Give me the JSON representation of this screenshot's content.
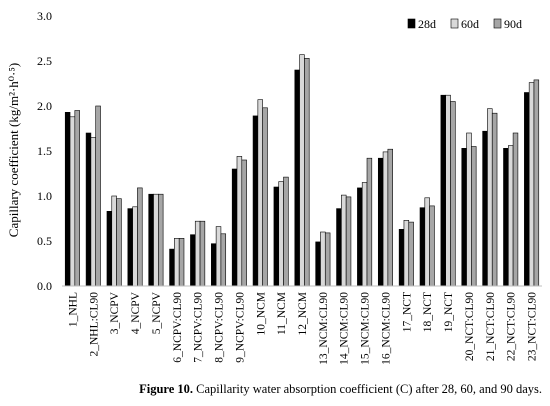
{
  "chart_data": {
    "type": "bar",
    "ylabel": "Capillary coefficient (kg/m²·h⁰·⁵)",
    "ylim": [
      0,
      3.0
    ],
    "yticks": [
      "0.0",
      "0.5",
      "1.0",
      "1.5",
      "2.0",
      "2.5",
      "3.0"
    ],
    "legend_position": "top-right",
    "grid": false,
    "categories": [
      "1_NHL",
      "2_NHL:CL90",
      "3_NCPV",
      "4_NCPV",
      "5_NCPV",
      "6_NCPV:CL90",
      "7_NCPV:CL90",
      "8_NCPV:CL90",
      "9_NCPV:CL90",
      "10_NCM",
      "11_NCM",
      "12_NCM",
      "13_NCM:CL90",
      "14_NCM:CL90",
      "15_NCM:CL90",
      "16_NCM:CL90",
      "17_NCT",
      "18_NCT",
      "19_NCT",
      "20_NCT:CL90",
      "21_NCT:CL90",
      "22_NCT:CL90",
      "23_NCT:CL90"
    ],
    "series": [
      {
        "name": "28d",
        "color": "#000000",
        "values": [
          1.93,
          1.7,
          0.83,
          0.86,
          1.02,
          0.41,
          0.57,
          0.47,
          1.3,
          1.89,
          1.1,
          2.4,
          0.49,
          0.86,
          1.09,
          1.42,
          0.63,
          0.87,
          2.12,
          1.53,
          1.72,
          1.53,
          2.15
        ]
      },
      {
        "name": "60d",
        "color": "#d9d9d9",
        "values": [
          1.88,
          1.65,
          1.0,
          0.88,
          1.02,
          0.53,
          0.72,
          0.66,
          1.44,
          2.07,
          1.16,
          2.57,
          0.6,
          1.01,
          1.15,
          1.49,
          0.73,
          0.98,
          2.12,
          1.7,
          1.97,
          1.56,
          2.26
        ]
      },
      {
        "name": "90d",
        "color": "#a6a6a6",
        "values": [
          1.95,
          2.0,
          0.97,
          1.09,
          1.02,
          0.53,
          0.72,
          0.58,
          1.4,
          1.98,
          1.21,
          2.53,
          0.59,
          0.99,
          1.42,
          1.52,
          0.71,
          0.89,
          2.05,
          1.55,
          1.92,
          1.7,
          2.29
        ]
      }
    ]
  },
  "caption": {
    "label": "Figure 10.",
    "text": " Capillarity water absorption coefficient (C) after 28, 60, and 90 days."
  }
}
